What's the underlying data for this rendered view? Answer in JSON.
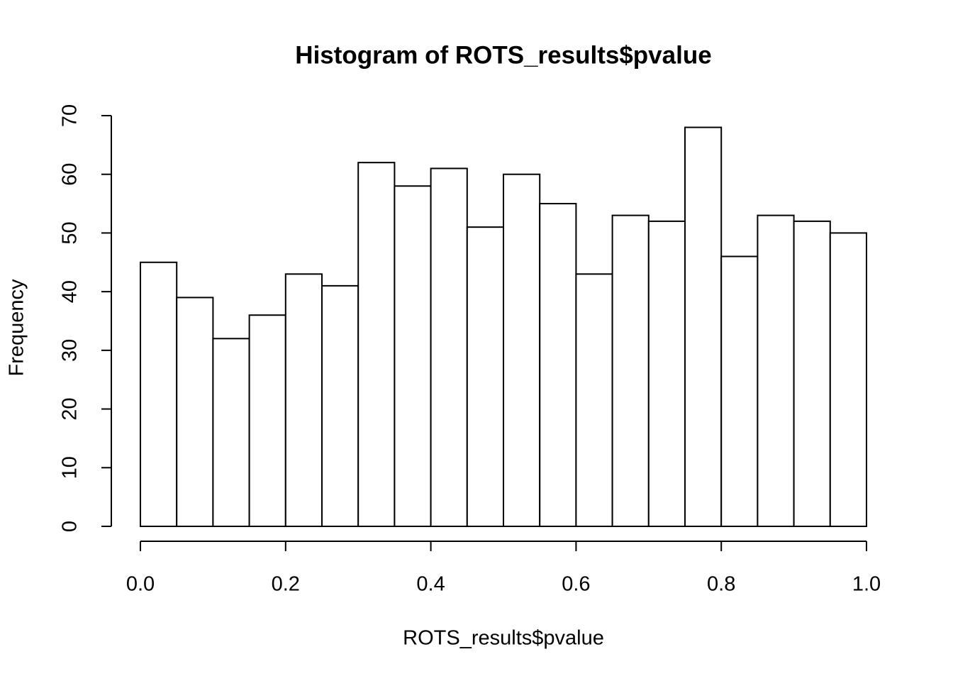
{
  "chart_data": {
    "type": "histogram",
    "title": "Histogram of ROTS_results$pvalue",
    "x_label": "ROTS_results$pvalue",
    "y_label": "Frequency",
    "bins": [
      0,
      0.05,
      0.1,
      0.15,
      0.2,
      0.25,
      0.3,
      0.35,
      0.4,
      0.45,
      0.5,
      0.55,
      0.6,
      0.65,
      0.7,
      0.75,
      0.8,
      0.85,
      0.9,
      0.95,
      1
    ],
    "values": [
      45,
      39,
      32,
      36,
      43,
      41,
      62,
      58,
      61,
      51,
      60,
      55,
      43,
      53,
      52,
      68,
      46,
      53,
      52,
      50
    ],
    "color": "#ffffff",
    "xlim": [
      0,
      1
    ],
    "xticks": [
      {
        "value": 0,
        "label": "0.0"
      },
      0.2,
      0.4,
      0.6,
      0.8,
      {
        "value": 1,
        "label": "1.0"
      }
    ],
    "ylim": [
      0,
      70
    ],
    "yticks": [
      0,
      10,
      20,
      30,
      40,
      50,
      60,
      70
    ],
    "grid": false
  }
}
